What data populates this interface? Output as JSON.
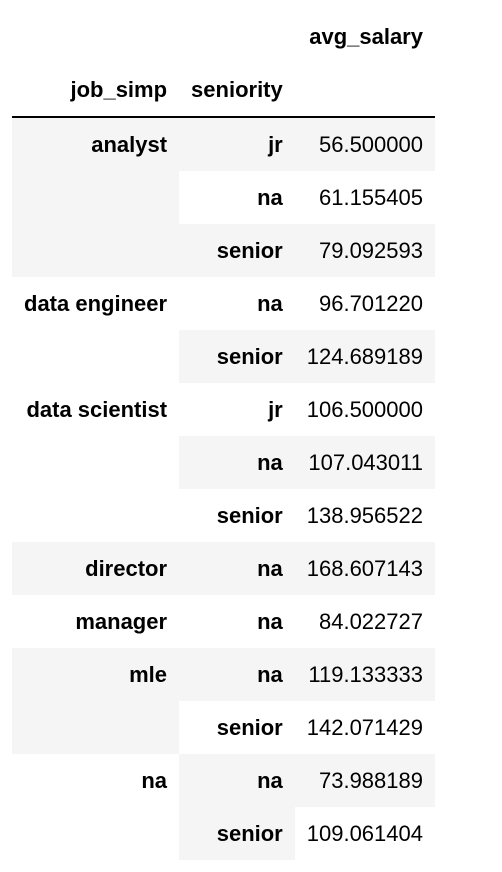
{
  "table": {
    "value_column": "avg_salary",
    "index_names": [
      "job_simp",
      "seniority"
    ],
    "rows": [
      {
        "job_simp": "analyst",
        "seniority": "jr",
        "avg_salary": "56.500000"
      },
      {
        "job_simp": "",
        "seniority": "na",
        "avg_salary": "61.155405"
      },
      {
        "job_simp": "",
        "seniority": "senior",
        "avg_salary": "79.092593"
      },
      {
        "job_simp": "data engineer",
        "seniority": "na",
        "avg_salary": "96.701220"
      },
      {
        "job_simp": "",
        "seniority": "senior",
        "avg_salary": "124.689189"
      },
      {
        "job_simp": "data scientist",
        "seniority": "jr",
        "avg_salary": "106.500000"
      },
      {
        "job_simp": "",
        "seniority": "na",
        "avg_salary": "107.043011"
      },
      {
        "job_simp": "",
        "seniority": "senior",
        "avg_salary": "138.956522"
      },
      {
        "job_simp": "director",
        "seniority": "na",
        "avg_salary": "168.607143"
      },
      {
        "job_simp": "manager",
        "seniority": "na",
        "avg_salary": "84.022727"
      },
      {
        "job_simp": "mle",
        "seniority": "na",
        "avg_salary": "119.133333"
      },
      {
        "job_simp": "",
        "seniority": "senior",
        "avg_salary": "142.071429"
      },
      {
        "job_simp": "na",
        "seniority": "na",
        "avg_salary": "73.988189"
      },
      {
        "job_simp": "",
        "seniority": "senior",
        "avg_salary": "109.061404"
      }
    ]
  },
  "colors": {
    "stripe": "#f5f5f5",
    "background": "#ffffff",
    "text": "#000000",
    "rule": "#000000"
  }
}
